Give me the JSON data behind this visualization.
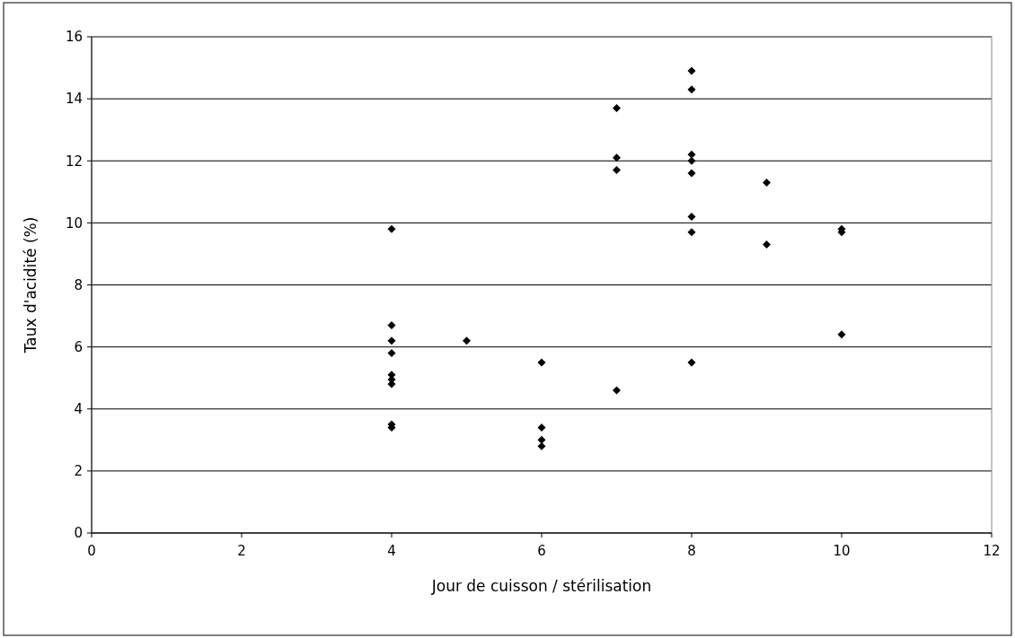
{
  "chart_data": {
    "type": "scatter",
    "xlabel": "Jour de cuisson / stérilisation",
    "ylabel": "Taux d'acidité (%)",
    "x": [
      4,
      4,
      4,
      4,
      4,
      4,
      4,
      4,
      4,
      5,
      6,
      6,
      6,
      6,
      7,
      7,
      7,
      7,
      8,
      8,
      8,
      8,
      8,
      8,
      8,
      8,
      9,
      9,
      10,
      10,
      10
    ],
    "series": [
      {
        "color": "#000000",
        "values": [
          9.8,
          6.7,
          6.2,
          5.8,
          5.1,
          4.95,
          4.8,
          3.5,
          3.4,
          6.2,
          5.5,
          3.4,
          3.0,
          2.8,
          13.7,
          12.1,
          11.7,
          4.6,
          14.9,
          14.3,
          12.2,
          12.0,
          11.6,
          10.2,
          9.7,
          5.5,
          11.3,
          9.3,
          9.8,
          9.7,
          6.4
        ]
      }
    ],
    "xlim": [
      0,
      12
    ],
    "xticks": [
      0,
      2,
      4,
      6,
      8,
      10,
      12
    ],
    "ylim": [
      0,
      16
    ],
    "yticks": [
      0,
      2,
      4,
      6,
      8,
      10,
      12,
      14,
      16
    ],
    "grid": "y",
    "marker": "diamond"
  }
}
